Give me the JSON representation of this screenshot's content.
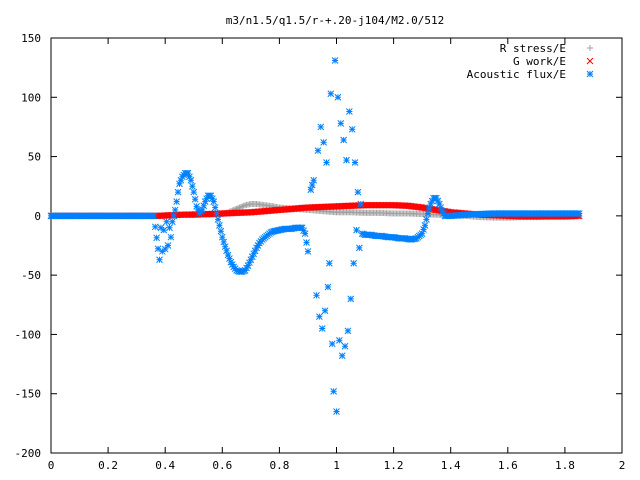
{
  "chart_data": {
    "type": "scatter",
    "title": "m3/n1.5/q1.5/r-+.20-j104/M2.0/512",
    "xlim": [
      0,
      2
    ],
    "ylim": [
      -200,
      150
    ],
    "x_ticks": [
      "0",
      "0.2",
      "0.4",
      "0.6",
      "0.8",
      "1",
      "1.2",
      "1.4",
      "1.6",
      "1.8",
      "2"
    ],
    "y_ticks": [
      "150",
      "100",
      "50",
      "0",
      "-50",
      "-100",
      "-150",
      "-200"
    ],
    "x_tick_values": [
      0,
      0.2,
      0.4,
      0.6,
      0.8,
      1,
      1.2,
      1.4,
      1.6,
      1.8,
      2
    ],
    "y_tick_values": [
      150,
      100,
      50,
      0,
      -50,
      -100,
      -150,
      -200
    ],
    "grid": false,
    "legend_position": "top-right",
    "series": [
      {
        "name": "R stress/E",
        "marker": "plus",
        "color": "#a0a0a0",
        "points": [
          [
            0.0,
            0
          ],
          [
            0.05,
            0
          ],
          [
            0.1,
            0
          ],
          [
            0.15,
            0
          ],
          [
            0.2,
            0
          ],
          [
            0.25,
            0
          ],
          [
            0.3,
            0
          ],
          [
            0.35,
            0
          ],
          [
            0.4,
            0.5
          ],
          [
            0.45,
            1
          ],
          [
            0.5,
            1.5
          ],
          [
            0.55,
            1
          ],
          [
            0.6,
            1.5
          ],
          [
            0.62,
            3
          ],
          [
            0.65,
            6
          ],
          [
            0.68,
            9
          ],
          [
            0.7,
            10
          ],
          [
            0.72,
            10
          ],
          [
            0.75,
            9
          ],
          [
            0.78,
            8
          ],
          [
            0.8,
            7
          ],
          [
            0.85,
            6
          ],
          [
            0.9,
            5
          ],
          [
            0.95,
            4
          ],
          [
            1.0,
            3
          ],
          [
            1.05,
            3
          ],
          [
            1.1,
            2.5
          ],
          [
            1.15,
            2.5
          ],
          [
            1.2,
            2
          ],
          [
            1.25,
            2
          ],
          [
            1.3,
            1.5
          ],
          [
            1.35,
            1
          ],
          [
            1.4,
            0.5
          ],
          [
            1.45,
            0
          ],
          [
            1.5,
            -1
          ],
          [
            1.55,
            -1.5
          ],
          [
            1.6,
            -1.5
          ],
          [
            1.65,
            -1
          ],
          [
            1.7,
            -1
          ],
          [
            1.75,
            -0.5
          ],
          [
            1.8,
            -0.5
          ],
          [
            1.85,
            0
          ]
        ]
      },
      {
        "name": "G work/E",
        "marker": "cross",
        "color": "#ff0000",
        "points": [
          [
            0.0,
            0
          ],
          [
            0.1,
            0
          ],
          [
            0.2,
            0
          ],
          [
            0.3,
            0
          ],
          [
            0.38,
            0
          ],
          [
            0.42,
            0.5
          ],
          [
            0.46,
            1
          ],
          [
            0.5,
            1
          ],
          [
            0.55,
            1.5
          ],
          [
            0.6,
            2
          ],
          [
            0.65,
            2.5
          ],
          [
            0.7,
            3
          ],
          [
            0.75,
            4
          ],
          [
            0.8,
            5
          ],
          [
            0.85,
            6
          ],
          [
            0.9,
            7
          ],
          [
            0.95,
            7.5
          ],
          [
            1.0,
            8
          ],
          [
            1.05,
            8.5
          ],
          [
            1.1,
            9
          ],
          [
            1.15,
            9
          ],
          [
            1.2,
            9
          ],
          [
            1.25,
            8.5
          ],
          [
            1.3,
            7
          ],
          [
            1.35,
            5
          ],
          [
            1.4,
            3
          ],
          [
            1.45,
            2
          ],
          [
            1.5,
            1
          ],
          [
            1.55,
            0.5
          ],
          [
            1.6,
            0
          ],
          [
            1.65,
            -0.5
          ],
          [
            1.7,
            -0.5
          ],
          [
            1.75,
            -0.5
          ],
          [
            1.8,
            -0.5
          ],
          [
            1.85,
            0
          ]
        ]
      },
      {
        "name": "Acoustic flux/E",
        "marker": "star",
        "color": "#0080ff",
        "points": [
          [
            0.0,
            0
          ],
          [
            0.03,
            0
          ],
          [
            0.06,
            0
          ],
          [
            0.09,
            0
          ],
          [
            0.12,
            0
          ],
          [
            0.15,
            0
          ],
          [
            0.18,
            0
          ],
          [
            0.21,
            0
          ],
          [
            0.24,
            0
          ],
          [
            0.27,
            0
          ],
          [
            0.3,
            0
          ],
          [
            0.33,
            0
          ],
          [
            0.36,
            0
          ],
          [
            0.38,
            -37
          ],
          [
            0.385,
            -10
          ],
          [
            0.39,
            -30
          ],
          [
            0.395,
            -12
          ],
          [
            0.4,
            -28
          ],
          [
            0.405,
            -5
          ],
          [
            0.41,
            -25
          ],
          [
            0.415,
            -10
          ],
          [
            0.42,
            -18
          ],
          [
            0.425,
            -5
          ],
          [
            0.43,
            0
          ],
          [
            0.435,
            5
          ],
          [
            0.44,
            12
          ],
          [
            0.445,
            20
          ],
          [
            0.45,
            27
          ],
          [
            0.46,
            33
          ],
          [
            0.47,
            36
          ],
          [
            0.48,
            36
          ],
          [
            0.49,
            30
          ],
          [
            0.5,
            20
          ],
          [
            0.51,
            8
          ],
          [
            0.52,
            2
          ],
          [
            0.53,
            5
          ],
          [
            0.54,
            12
          ],
          [
            0.55,
            17
          ],
          [
            0.56,
            17
          ],
          [
            0.57,
            12
          ],
          [
            0.58,
            2
          ],
          [
            0.59,
            -8
          ],
          [
            0.6,
            -18
          ],
          [
            0.61,
            -26
          ],
          [
            0.62,
            -33
          ],
          [
            0.63,
            -39
          ],
          [
            0.64,
            -43
          ],
          [
            0.65,
            -46
          ],
          [
            0.66,
            -47
          ],
          [
            0.67,
            -47
          ],
          [
            0.68,
            -46
          ],
          [
            0.69,
            -42
          ],
          [
            0.7,
            -37
          ],
          [
            0.71,
            -32
          ],
          [
            0.72,
            -27
          ],
          [
            0.73,
            -23
          ],
          [
            0.74,
            -20
          ],
          [
            0.75,
            -18
          ],
          [
            0.76,
            -16
          ],
          [
            0.77,
            -14
          ],
          [
            0.78,
            -13
          ],
          [
            0.8,
            -12
          ],
          [
            0.82,
            -11
          ],
          [
            0.84,
            -11
          ],
          [
            0.86,
            -10
          ],
          [
            0.88,
            -10
          ],
          [
            0.89,
            -15
          ],
          [
            0.9,
            -30
          ],
          [
            0.91,
            22
          ],
          [
            0.92,
            30
          ],
          [
            0.93,
            -67
          ],
          [
            0.935,
            55
          ],
          [
            0.94,
            -85
          ],
          [
            0.945,
            75
          ],
          [
            0.95,
            -95
          ],
          [
            0.955,
            62
          ],
          [
            0.96,
            -80
          ],
          [
            0.965,
            45
          ],
          [
            0.97,
            -60
          ],
          [
            0.975,
            -40
          ],
          [
            0.98,
            103
          ],
          [
            0.985,
            -108
          ],
          [
            0.99,
            -148
          ],
          [
            0.995,
            131
          ],
          [
            1.0,
            -165
          ],
          [
            1.005,
            100
          ],
          [
            1.01,
            -105
          ],
          [
            1.015,
            78
          ],
          [
            1.02,
            -118
          ],
          [
            1.025,
            64
          ],
          [
            1.03,
            -110
          ],
          [
            1.035,
            47
          ],
          [
            1.04,
            -97
          ],
          [
            1.045,
            88
          ],
          [
            1.05,
            -70
          ],
          [
            1.055,
            73
          ],
          [
            1.06,
            -40
          ],
          [
            1.065,
            45
          ],
          [
            1.07,
            -12
          ],
          [
            1.075,
            20
          ],
          [
            1.08,
            -27
          ],
          [
            1.085,
            10
          ],
          [
            1.09,
            -15
          ],
          [
            1.1,
            -16
          ],
          [
            1.12,
            -16
          ],
          [
            1.14,
            -17
          ],
          [
            1.16,
            -17
          ],
          [
            1.18,
            -18
          ],
          [
            1.2,
            -18
          ],
          [
            1.22,
            -19
          ],
          [
            1.24,
            -19
          ],
          [
            1.26,
            -20
          ],
          [
            1.28,
            -19
          ],
          [
            1.3,
            -15
          ],
          [
            1.31,
            -8
          ],
          [
            1.32,
            2
          ],
          [
            1.33,
            10
          ],
          [
            1.34,
            15
          ],
          [
            1.35,
            15
          ],
          [
            1.36,
            10
          ],
          [
            1.37,
            4
          ],
          [
            1.38,
            0
          ],
          [
            1.4,
            0
          ],
          [
            1.43,
            0.5
          ],
          [
            1.46,
            1
          ],
          [
            1.5,
            1.5
          ],
          [
            1.55,
            2
          ],
          [
            1.6,
            2
          ],
          [
            1.65,
            2
          ],
          [
            1.7,
            2
          ],
          [
            1.75,
            2
          ],
          [
            1.8,
            2
          ],
          [
            1.85,
            2
          ]
        ]
      }
    ]
  }
}
